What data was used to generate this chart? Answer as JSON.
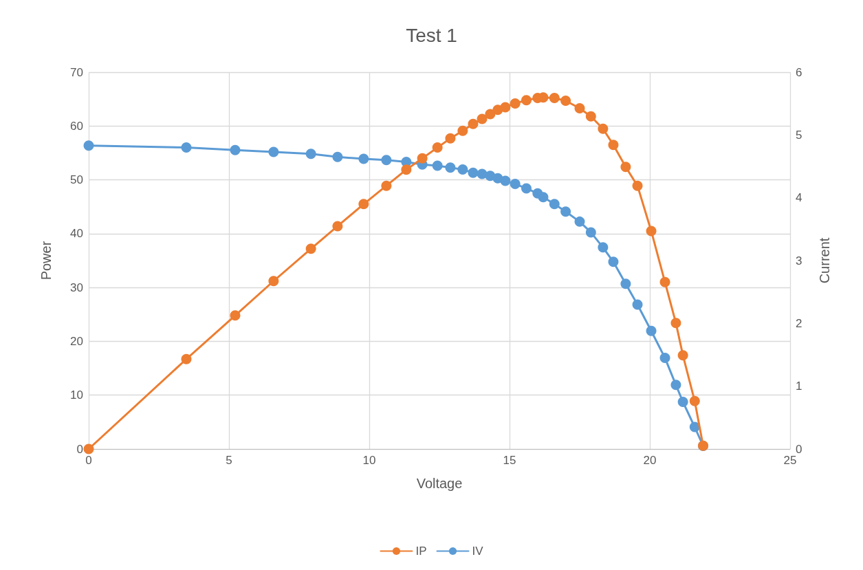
{
  "chart_data": {
    "type": "line",
    "title": "Test 1",
    "xlabel": "Voltage",
    "ylabel": "Power",
    "y2label": "Current",
    "xlim": [
      0,
      25
    ],
    "xticks": [
      0,
      5,
      10,
      15,
      20,
      25
    ],
    "ylim": [
      0,
      70
    ],
    "yticks": [
      0,
      10,
      20,
      30,
      40,
      50,
      60,
      70
    ],
    "y2lim": [
      0,
      6
    ],
    "y2ticks": [
      0,
      1,
      2,
      3,
      4,
      5,
      6
    ],
    "grid": true,
    "legend": "bottom",
    "marker": "circle",
    "line_style": "solid",
    "series": [
      {
        "name": "IP",
        "color": "#ed7d31",
        "x": [
          0,
          3.48,
          5.22,
          6.59,
          7.92,
          8.87,
          9.8,
          10.61,
          11.32,
          11.89,
          12.43,
          12.89,
          13.33,
          13.7,
          14.02,
          14.31,
          14.58,
          14.85,
          15.2,
          15.6,
          16.0,
          16.2,
          16.6,
          17.0,
          17.5,
          17.9,
          18.33,
          18.7,
          19.14,
          19.56,
          20.05,
          20.54,
          20.93,
          21.18,
          21.6,
          21.9
        ],
        "values": [
          0,
          16.7,
          24.8,
          31.2,
          37.2,
          41.4,
          45.5,
          48.9,
          51.9,
          54.0,
          56.0,
          57.7,
          59.1,
          60.4,
          61.3,
          62.2,
          63.0,
          63.5,
          64.2,
          64.8,
          65.2,
          65.3,
          65.2,
          64.7,
          63.3,
          61.8,
          59.5,
          56.5,
          52.4,
          48.9,
          40.5,
          31.0,
          23.4,
          17.4,
          8.9,
          0.6
        ]
      },
      {
        "name": "IV",
        "color": "#5b9bd5",
        "axis": "y2",
        "x": [
          0,
          3.48,
          5.22,
          6.59,
          7.92,
          8.87,
          9.8,
          10.61,
          11.32,
          11.89,
          12.43,
          12.89,
          13.33,
          13.7,
          14.02,
          14.31,
          14.58,
          14.85,
          15.2,
          15.6,
          16.0,
          16.2,
          16.6,
          17.0,
          17.5,
          17.9,
          18.33,
          18.7,
          19.14,
          19.56,
          20.05,
          20.54,
          20.93,
          21.18,
          21.6,
          21.9
        ],
        "values": [
          4.83,
          4.8,
          4.76,
          4.73,
          4.7,
          4.65,
          4.62,
          4.6,
          4.57,
          4.53,
          4.51,
          4.48,
          4.45,
          4.4,
          4.38,
          4.35,
          4.31,
          4.27,
          4.22,
          4.15,
          4.07,
          4.01,
          3.9,
          3.78,
          3.62,
          3.45,
          3.21,
          2.98,
          2.63,
          2.3,
          1.88,
          1.45,
          1.02,
          0.75,
          0.35,
          0.05
        ]
      }
    ]
  }
}
